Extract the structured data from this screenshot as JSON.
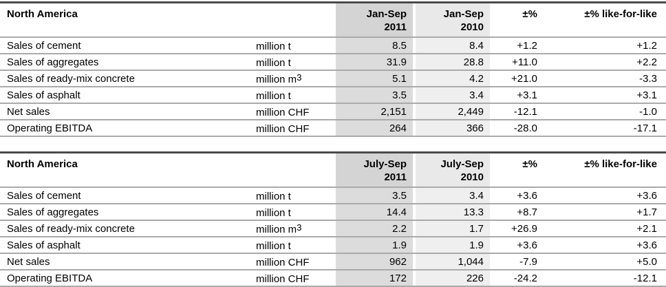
{
  "colors": {
    "table_top_border": "#4a4a4a",
    "row_separator": "#aaaaaa",
    "col_2011_header_bg": "#d4d4d4",
    "col_2011_row_bg": "#dcdcdc",
    "col_2010_header_bg": "#e9e9e9",
    "col_2010_row_bg": "#efefef",
    "text": "#000000"
  },
  "tables": [
    {
      "title": "North America",
      "headers": {
        "col2011": [
          "Jan-Sep",
          "2011"
        ],
        "col2010": [
          "Jan-Sep",
          "2010"
        ],
        "pct": "±%",
        "lfl": "±% like-for-like"
      },
      "rows": [
        {
          "label": "Sales of cement",
          "unit": "million t",
          "v2011": "8.5",
          "v2010": "8.4",
          "pct": "+1.2",
          "lfl": "+1.2"
        },
        {
          "label": "Sales of aggregates",
          "unit": "million t",
          "v2011": "31.9",
          "v2010": "28.8",
          "pct": "+11.0",
          "lfl": "+2.2"
        },
        {
          "label": "Sales of ready-mix concrete",
          "unit": "million m",
          "unit_sup": "3",
          "v2011": "5.1",
          "v2010": "4.2",
          "pct": "+21.0",
          "lfl": "-3.3"
        },
        {
          "label": "Sales of asphalt",
          "unit": "million t",
          "v2011": "3.5",
          "v2010": "3.4",
          "pct": "+3.1",
          "lfl": "+3.1"
        },
        {
          "label": "Net sales",
          "unit": "million CHF",
          "v2011": "2,151",
          "v2010": "2,449",
          "pct": "-12.1",
          "lfl": "-1.0"
        },
        {
          "label": "Operating EBITDA",
          "unit": "million CHF",
          "v2011": "264",
          "v2010": "366",
          "pct": "-28.0",
          "lfl": "-17.1"
        }
      ]
    },
    {
      "title": "North America",
      "headers": {
        "col2011": [
          "July-Sep",
          "2011"
        ],
        "col2010": [
          "July-Sep",
          "2010"
        ],
        "pct": "±%",
        "lfl": "±% like-for-like"
      },
      "rows": [
        {
          "label": "Sales of cement",
          "unit": "million t",
          "v2011": "3.5",
          "v2010": "3.4",
          "pct": "+3.6",
          "lfl": "+3.6"
        },
        {
          "label": "Sales of aggregates",
          "unit": "million t",
          "v2011": "14.4",
          "v2010": "13.3",
          "pct": "+8.7",
          "lfl": "+1.7"
        },
        {
          "label": "Sales of ready-mix concrete",
          "unit": "million m",
          "unit_sup": "3",
          "v2011": "2.2",
          "v2010": "1.7",
          "pct": "+26.9",
          "lfl": "+2.1"
        },
        {
          "label": "Sales of asphalt",
          "unit": "million t",
          "v2011": "1.9",
          "v2010": "1.9",
          "pct": "+3.6",
          "lfl": "+3.6"
        },
        {
          "label": "Net sales",
          "unit": "million CHF",
          "v2011": "962",
          "v2010": "1,044",
          "pct": "-7.9",
          "lfl": "+5.0"
        },
        {
          "label": "Operating EBITDA",
          "unit": "million CHF",
          "v2011": "172",
          "v2010": "226",
          "pct": "-24.2",
          "lfl": "-12.1"
        }
      ]
    }
  ]
}
